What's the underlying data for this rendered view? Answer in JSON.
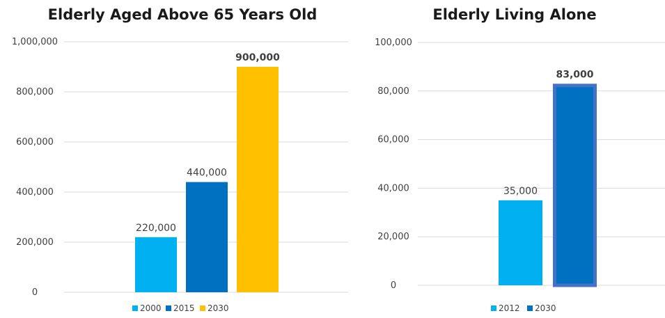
{
  "chart_data": [
    {
      "type": "bar",
      "title": "Elderly Aged Above 65 Years Old",
      "ylim": [
        0,
        1000000
      ],
      "yticks": [
        0,
        200000,
        400000,
        600000,
        800000,
        1000000
      ],
      "ytick_labels": [
        "0",
        "200,000",
        "400,000",
        "600,000",
        "800,000",
        "1,000,000"
      ],
      "grid": true,
      "legend_position": "bottom",
      "series": [
        {
          "name": "2000",
          "value": 220000,
          "label": "220,000",
          "color": "#00B0F0",
          "label_color": "#404040",
          "label_bold": false
        },
        {
          "name": "2015",
          "value": 440000,
          "label": "440,000",
          "color": "#0070C0",
          "label_color": "#404040",
          "label_bold": false
        },
        {
          "name": "2030",
          "value": 900000,
          "label": "900,000",
          "color": "#FFC000",
          "label_color": "#A6A6A6",
          "label_bold": true
        }
      ]
    },
    {
      "type": "bar",
      "title": "Elderly Living Alone",
      "ylim": [
        0,
        100000
      ],
      "yticks": [
        0,
        20000,
        40000,
        60000,
        80000,
        100000
      ],
      "ytick_labels": [
        "0",
        "20,000",
        "40,000",
        "60,000",
        "80,000",
        "100,000"
      ],
      "grid": true,
      "legend_position": "bottom",
      "series": [
        {
          "name": "2012",
          "value": 35000,
          "label": "35,000",
          "color": "#00B0F0",
          "label_color": "#404040",
          "label_bold": false
        },
        {
          "name": "2030",
          "value": 83000,
          "label": "83,000",
          "color": "#0070C0",
          "label_color": "#ED7D31",
          "label_bold": true,
          "outline": "#4472C4"
        }
      ]
    }
  ]
}
